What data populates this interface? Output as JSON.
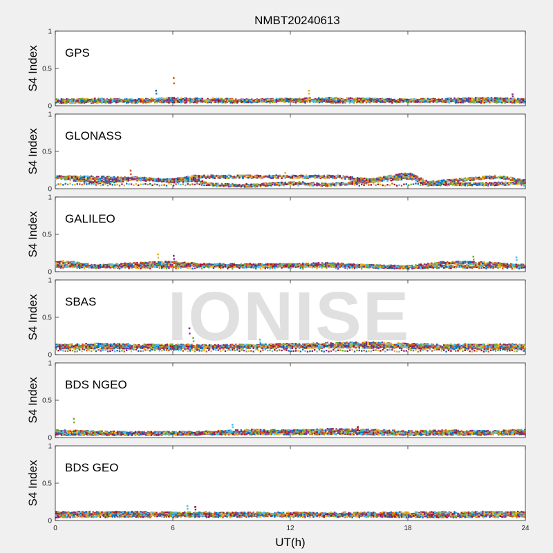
{
  "title": "NMBT20240613",
  "watermark": "IONISE",
  "colors": [
    "#0072BD",
    "#D95319",
    "#EDB120",
    "#7E2F8E",
    "#77AC30",
    "#4DBEEE",
    "#A2142F"
  ],
  "chart_data": {
    "type": "scatter",
    "xlabel": "UT(h)",
    "ylabel": "S4 Index",
    "xlim": [
      0,
      24
    ],
    "ylim": [
      0,
      1
    ],
    "xticks": [
      "0",
      "6",
      "12",
      "18",
      "24"
    ],
    "yticks": [
      "0",
      "0.5",
      "1"
    ],
    "grid": false,
    "panels": [
      {
        "label": "GPS",
        "series": [
          {
            "values": [
              [
                0,
                0.07
              ],
              [
                2,
                0.08
              ],
              [
                4,
                0.07
              ],
              [
                6,
                0.09
              ],
              [
                8,
                0.08
              ],
              [
                10,
                0.07
              ],
              [
                12,
                0.08
              ],
              [
                14,
                0.09
              ],
              [
                16,
                0.08
              ],
              [
                18,
                0.07
              ],
              [
                20,
                0.08
              ],
              [
                22,
                0.09
              ],
              [
                24,
                0.07
              ]
            ]
          },
          {
            "values": [
              [
                0,
                0.05
              ],
              [
                3,
                0.06
              ],
              [
                6,
                0.06
              ],
              [
                9,
                0.06
              ],
              [
                12,
                0.07
              ],
              [
                15,
                0.06
              ],
              [
                18,
                0.07
              ],
              [
                21,
                0.06
              ],
              [
                24,
                0.06
              ]
            ]
          }
        ],
        "spikes": [
          [
            5.1,
            0.2
          ],
          [
            6.0,
            0.37
          ],
          [
            12.9,
            0.2
          ],
          [
            23.3,
            0.15
          ]
        ]
      },
      {
        "label": "GLONASS",
        "series": [
          {
            "values": [
              [
                0,
                0.16
              ],
              [
                1,
                0.12
              ],
              [
                2,
                0.09
              ],
              [
                3,
                0.1
              ],
              [
                4,
                0.14
              ],
              [
                5,
                0.12
              ],
              [
                6,
                0.1
              ],
              [
                7,
                0.12
              ],
              [
                8,
                0.05
              ],
              [
                10,
                0.04
              ],
              [
                12,
                0.08
              ],
              [
                14,
                0.05
              ],
              [
                16,
                0.1
              ],
              [
                18,
                0.15
              ],
              [
                19,
                0.06
              ],
              [
                22,
                0.06
              ],
              [
                24,
                0.08
              ]
            ]
          },
          {
            "values": [
              [
                2,
                0.15
              ],
              [
                4,
                0.13
              ],
              [
                6,
                0.11
              ],
              [
                7,
                0.16
              ],
              [
                14.5,
                0.16
              ],
              [
                16,
                0.11
              ],
              [
                18,
                0.2
              ],
              [
                19,
                0.08
              ],
              [
                22.5,
                0.16
              ],
              [
                24,
                0.1
              ]
            ]
          }
        ],
        "spikes": [
          [
            3.8,
            0.24
          ],
          [
            11.7,
            0.21
          ]
        ]
      },
      {
        "label": "GALILEO",
        "series": [
          {
            "values": [
              [
                0,
                0.13
              ],
              [
                1,
                0.11
              ],
              [
                2,
                0.07
              ],
              [
                4,
                0.1
              ],
              [
                6,
                0.12
              ],
              [
                8,
                0.08
              ],
              [
                10,
                0.07
              ],
              [
                12,
                0.09
              ],
              [
                14,
                0.1
              ],
              [
                16,
                0.07
              ],
              [
                18,
                0.06
              ],
              [
                20,
                0.12
              ],
              [
                22,
                0.11
              ],
              [
                24,
                0.07
              ]
            ]
          },
          {
            "values": [
              [
                0,
                0.08
              ],
              [
                3,
                0.07
              ],
              [
                6,
                0.08
              ],
              [
                9,
                0.09
              ],
              [
                12,
                0.08
              ],
              [
                15,
                0.08
              ],
              [
                18,
                0.06
              ],
              [
                21,
                0.07
              ],
              [
                24,
                0.08
              ]
            ]
          }
        ],
        "spikes": [
          [
            5.2,
            0.23
          ],
          [
            6.0,
            0.21
          ],
          [
            21.3,
            0.2
          ],
          [
            23.5,
            0.19
          ]
        ]
      },
      {
        "label": "SBAS",
        "series": [
          {
            "values": [
              [
                0,
                0.12
              ],
              [
                2,
                0.13
              ],
              [
                4,
                0.12
              ],
              [
                6,
                0.12
              ],
              [
                8,
                0.11
              ],
              [
                10,
                0.12
              ],
              [
                12,
                0.13
              ],
              [
                14,
                0.14
              ],
              [
                16,
                0.15
              ],
              [
                18,
                0.13
              ],
              [
                20,
                0.12
              ],
              [
                22,
                0.12
              ],
              [
                24,
                0.12
              ]
            ]
          },
          {
            "values": [
              [
                0,
                0.09
              ],
              [
                3,
                0.1
              ],
              [
                6,
                0.09
              ],
              [
                9,
                0.1
              ],
              [
                12,
                0.1
              ],
              [
                15,
                0.11
              ],
              [
                18,
                0.1
              ],
              [
                21,
                0.09
              ],
              [
                24,
                0.09
              ]
            ]
          }
        ],
        "spikes": [
          [
            6.8,
            0.35
          ],
          [
            7.0,
            0.22
          ],
          [
            10.4,
            0.2
          ]
        ]
      },
      {
        "label": "BDS NGEO",
        "series": [
          {
            "values": [
              [
                0,
                0.08
              ],
              [
                2,
                0.07
              ],
              [
                4,
                0.06
              ],
              [
                6,
                0.06
              ],
              [
                8,
                0.07
              ],
              [
                10,
                0.09
              ],
              [
                12,
                0.08
              ],
              [
                14,
                0.1
              ],
              [
                16,
                0.09
              ],
              [
                18,
                0.07
              ],
              [
                20,
                0.08
              ],
              [
                22,
                0.07
              ],
              [
                24,
                0.09
              ]
            ]
          },
          {
            "values": [
              [
                0,
                0.05
              ],
              [
                3,
                0.05
              ],
              [
                6,
                0.05
              ],
              [
                9,
                0.06
              ],
              [
                12,
                0.06
              ],
              [
                15,
                0.06
              ],
              [
                18,
                0.05
              ],
              [
                21,
                0.05
              ],
              [
                24,
                0.06
              ]
            ]
          }
        ],
        "spikes": [
          [
            0.9,
            0.25
          ],
          [
            9.0,
            0.17
          ],
          [
            15.4,
            0.14
          ]
        ]
      },
      {
        "label": "BDS GEO",
        "series": [
          {
            "values": [
              [
                0,
                0.1
              ],
              [
                4,
                0.1
              ],
              [
                8,
                0.09
              ],
              [
                12,
                0.09
              ],
              [
                16,
                0.09
              ],
              [
                20,
                0.1
              ],
              [
                24,
                0.1
              ]
            ]
          },
          {
            "values": [
              [
                0,
                0.06
              ],
              [
                4,
                0.07
              ],
              [
                8,
                0.07
              ],
              [
                12,
                0.07
              ],
              [
                16,
                0.07
              ],
              [
                20,
                0.06
              ],
              [
                24,
                0.07
              ]
            ]
          }
        ],
        "spikes": [
          [
            6.7,
            0.19
          ],
          [
            7.1,
            0.18
          ]
        ]
      }
    ]
  }
}
